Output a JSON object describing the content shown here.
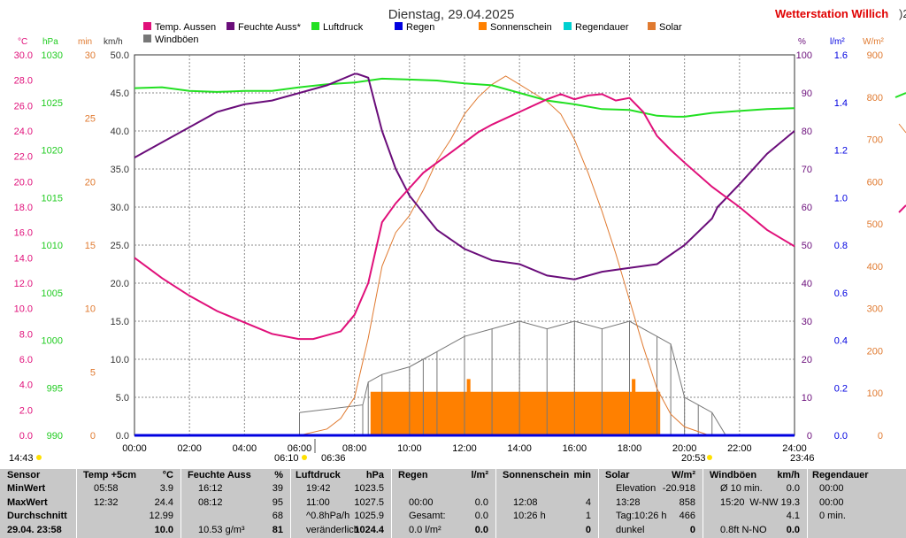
{
  "header": {
    "date_title": "Dienstag, 29.04.2025",
    "station": "Wetterstation Willich",
    "station_suffix": ")2"
  },
  "colors": {
    "temp": "#e0107a",
    "humidity": "#6a0d7a",
    "pressure": "#22e022",
    "rain": "#0000e0",
    "sunshine": "#ff8000",
    "rainduration": "#00d0d0",
    "solar": "#e07a30",
    "gust": "#777777",
    "station": "#e00000"
  },
  "legend": [
    {
      "label": "Temp. Aussen",
      "color": "#e0107a"
    },
    {
      "label": "Feuchte Auss*",
      "color": "#6a0d7a"
    },
    {
      "label": "Luftdruck",
      "color": "#22e022"
    },
    {
      "label": "Regen",
      "color": "#0000e0"
    },
    {
      "label": "Sonnenschein",
      "color": "#ff8000"
    },
    {
      "label": "Regendauer",
      "color": "#00d0d0"
    },
    {
      "label": "Solar",
      "color": "#e07a30"
    },
    {
      "label": "Windböen",
      "color": "#777777"
    }
  ],
  "axis_units": {
    "temp": "°C",
    "pressure": "hPa",
    "sunshine": "min",
    "wind": "km/h",
    "humidity": "%",
    "rain": "l/m²",
    "solar": "W/m²"
  },
  "sun_events": {
    "sunrise": "06:10",
    "sunrise2": "06:36",
    "sunset": "20:53",
    "sunset2": "23:46",
    "left_time": "14:43"
  },
  "chart_data": {
    "type": "line",
    "title": "Dienstag, 29.04.2025",
    "x_ticks": [
      "00:00",
      "02:00",
      "04:00",
      "06:00",
      "08:00",
      "10:00",
      "12:00",
      "14:00",
      "16:00",
      "18:00",
      "20:00",
      "22:00",
      "24:00"
    ],
    "x_range_hours": [
      0,
      24
    ],
    "axes": {
      "temp_c": {
        "range": [
          0,
          30
        ],
        "ticks": [
          "0.0",
          "2.0",
          "4.0",
          "6.0",
          "8.0",
          "10.0",
          "12.0",
          "14.0",
          "16.0",
          "18.0",
          "20.0",
          "22.0",
          "24.0",
          "26.0",
          "28.0",
          "30.0"
        ]
      },
      "pressure_hpa": {
        "range": [
          990,
          1030
        ],
        "ticks": [
          "990",
          "995",
          "1000",
          "1005",
          "1010",
          "1015",
          "1020",
          "1025",
          "1030"
        ]
      },
      "sunshine_min": {
        "range": [
          0,
          30
        ],
        "ticks": [
          "0",
          "5",
          "10",
          "15",
          "20",
          "25",
          "30"
        ]
      },
      "wind_kmh": {
        "range": [
          0,
          50
        ],
        "ticks": [
          "0.0",
          "5.0",
          "10.0",
          "15.0",
          "20.0",
          "25.0",
          "30.0",
          "35.0",
          "40.0",
          "45.0",
          "50.0"
        ]
      },
      "humidity_pct": {
        "range": [
          0,
          100
        ],
        "ticks": [
          "0",
          "10",
          "20",
          "30",
          "40",
          "50",
          "60",
          "70",
          "80",
          "90",
          "100"
        ]
      },
      "rain_lm2": {
        "range": [
          0,
          1.6
        ],
        "ticks": [
          "0.0",
          "0.2",
          "0.4",
          "0.6",
          "0.8",
          "1.0",
          "1.2",
          "1.4",
          "1.6"
        ]
      },
      "solar_wm2": {
        "range": [
          0,
          900
        ],
        "ticks": [
          "0",
          "100",
          "200",
          "300",
          "400",
          "500",
          "600",
          "700",
          "800",
          "900"
        ]
      }
    },
    "series": [
      {
        "name": "Temp. Aussen",
        "axis": "temp_c",
        "x": [
          0,
          1,
          2,
          3,
          4,
          5,
          5.97,
          6.5,
          7,
          7.5,
          8,
          8.5,
          9,
          9.5,
          10,
          10.5,
          11,
          11.5,
          12,
          12.5,
          13,
          14,
          15,
          15.5,
          16,
          16.5,
          17,
          17.5,
          18,
          18.5,
          19,
          19.5,
          20,
          21,
          22,
          23,
          24
        ],
        "y": [
          14.0,
          12.4,
          11.0,
          9.8,
          8.9,
          8.0,
          7.6,
          7.6,
          7.9,
          8.2,
          9.5,
          12.0,
          16.8,
          18.3,
          19.5,
          20.7,
          21.5,
          22.3,
          23.1,
          23.9,
          24.5,
          25.5,
          26.5,
          26.9,
          26.5,
          26.8,
          26.9,
          26.4,
          26.6,
          25.5,
          23.6,
          22.5,
          21.5,
          19.6,
          18.0,
          16.2,
          14.9
        ]
      },
      {
        "name": "Feuchte Auss*",
        "axis": "humidity_pct",
        "x": [
          0,
          1,
          2,
          3,
          4,
          5,
          6,
          7,
          8,
          8.1,
          8.5,
          9,
          9.5,
          10,
          11,
          12,
          13,
          14,
          15,
          16,
          17,
          18,
          19,
          20,
          21,
          21.2,
          22,
          23,
          24
        ],
        "y": [
          73,
          77,
          81,
          85,
          87,
          88,
          90,
          92,
          95,
          95,
          94,
          80,
          70,
          63,
          54,
          49,
          46,
          45,
          42,
          41,
          43,
          44,
          45,
          50,
          57,
          60,
          66,
          74,
          80
        ]
      },
      {
        "name": "Luftdruck",
        "axis": "pressure_hpa",
        "x": [
          0,
          1,
          2,
          3,
          4,
          5,
          6,
          7,
          8,
          9,
          10,
          11,
          12,
          13,
          14,
          15,
          16,
          17,
          18,
          19,
          19.7,
          20,
          21,
          22,
          23,
          24
        ],
        "y": [
          1026.5,
          1026.6,
          1026.2,
          1026.1,
          1026.2,
          1026.2,
          1026.6,
          1026.9,
          1027.1,
          1027.5,
          1027.4,
          1027.3,
          1027.0,
          1026.8,
          1026.0,
          1025.2,
          1024.8,
          1024.3,
          1024.2,
          1023.6,
          1023.5,
          1023.5,
          1023.9,
          1024.1,
          1024.3,
          1024.4
        ]
      },
      {
        "name": "Solar",
        "axis": "solar_wm2",
        "x": [
          0,
          6,
          7,
          7.5,
          8,
          8.5,
          9,
          9.5,
          10,
          10.5,
          11,
          11.5,
          12,
          12.5,
          13,
          13.5,
          14,
          14.5,
          15,
          15.5,
          16,
          16.5,
          17,
          17.5,
          18,
          18.5,
          19,
          19.5,
          20,
          20.9,
          24
        ],
        "y": [
          0,
          0,
          15,
          40,
          90,
          230,
          400,
          480,
          520,
          580,
          650,
          700,
          760,
          800,
          830,
          850,
          830,
          810,
          790,
          760,
          700,
          620,
          530,
          430,
          320,
          210,
          110,
          50,
          20,
          0,
          0
        ]
      },
      {
        "name": "Windböen",
        "axis": "wind_kmh",
        "x": [
          6,
          8.3,
          8.5,
          9,
          10,
          10.5,
          11,
          12,
          13,
          14,
          15,
          16,
          17,
          18,
          19,
          19.5,
          20,
          20.5,
          21,
          21.5,
          24
        ],
        "y": [
          3,
          4,
          7,
          8,
          9,
          10,
          11,
          13,
          14,
          15,
          14,
          15,
          14,
          15,
          13,
          12,
          5,
          4,
          3,
          0,
          0
        ]
      },
      {
        "name": "Sonnenschein",
        "axis": "sunshine_min",
        "x": [
          8.6,
          8.6,
          12.1,
          12.1,
          12.2,
          12.2,
          18.1,
          18.1,
          18.2,
          18.2,
          19.1,
          19.1
        ],
        "y": [
          0,
          3.4,
          3.4,
          4.4,
          4.4,
          3.4,
          3.4,
          4.4,
          4.4,
          3.4,
          3.4,
          0
        ]
      },
      {
        "name": "Regen",
        "axis": "rain_lm2",
        "x": [
          0,
          24
        ],
        "y": [
          0,
          0
        ]
      }
    ]
  },
  "stats": {
    "sensor": {
      "header": "Sensor",
      "rows": [
        "MinWert",
        "MaxWert",
        "Durchschnitt",
        "29.04. 23:58"
      ]
    },
    "temp": {
      "header": "Temp +5cm",
      "unit": "°C",
      "rows": [
        [
          "05:58",
          "3.9"
        ],
        [
          "12:32",
          "24.4"
        ],
        [
          "",
          "12.99"
        ],
        [
          "",
          "10.0"
        ]
      ]
    },
    "humidity": {
      "header": "Feuchte Auss",
      "unit": "%",
      "rows": [
        [
          "16:12",
          "39"
        ],
        [
          "08:12",
          "95"
        ],
        [
          "",
          "68"
        ],
        [
          "10.53 g/m³",
          "81"
        ]
      ]
    },
    "pressure": {
      "header": "Luftdruck",
      "unit": "hPa",
      "rows": [
        [
          "19:42",
          "1023.5"
        ],
        [
          "11:00",
          "1027.5"
        ],
        [
          "^0.8hPa/h",
          "1025.9"
        ],
        [
          "veränderlich",
          "1024.4"
        ]
      ]
    },
    "rain": {
      "header": "Regen",
      "unit": "l/m²",
      "rows": [
        [
          "",
          ""
        ],
        [
          "00:00",
          "0.0"
        ],
        [
          "Gesamt:",
          "0.0"
        ],
        [
          "0.0 l/m²",
          "0.0"
        ]
      ]
    },
    "sunshine": {
      "header": "Sonnenschein",
      "unit": "min",
      "rows": [
        [
          "",
          ""
        ],
        [
          "12:08",
          "4"
        ],
        [
          "10:26 h",
          "1"
        ],
        [
          "",
          "0"
        ]
      ]
    },
    "solar": {
      "header": "Solar",
      "unit": "W/m²",
      "rows": [
        [
          "Elevation",
          "-20.918"
        ],
        [
          "13:28",
          "858"
        ],
        [
          "Tag:10:26 h",
          "466"
        ],
        [
          "dunkel",
          "0"
        ]
      ]
    },
    "wind": {
      "header": "Windböen",
      "unit": "km/h",
      "rows": [
        [
          "Ø 10 min.",
          "0.0"
        ],
        [
          "15:20",
          "W-NW 19.3"
        ],
        [
          "",
          "4.1"
        ],
        [
          "0.8ft N-NO",
          "0.0"
        ]
      ]
    },
    "rainduration": {
      "header": "Regendauer",
      "rows": [
        "00:00",
        "00:00",
        "0 min.",
        ""
      ]
    }
  }
}
